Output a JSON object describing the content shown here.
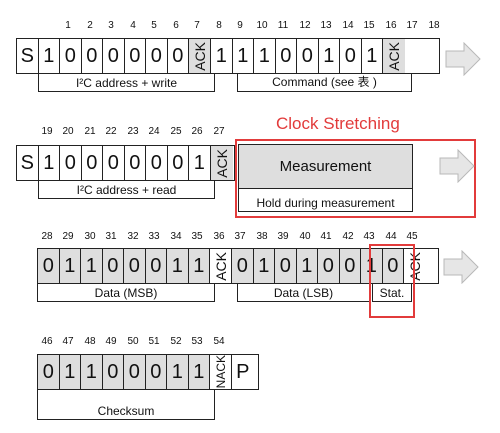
{
  "colors": {
    "highlight": "#e23b3b",
    "shade": "#dedede",
    "arrow": "#d8d8d8"
  },
  "row1": {
    "numbers": [
      "1",
      "2",
      "3",
      "4",
      "5",
      "6",
      "7",
      "8",
      "9",
      "10",
      "11",
      "12",
      "13",
      "14",
      "15",
      "16",
      "17",
      "18"
    ],
    "bits": [
      "S",
      "1",
      "0",
      "0",
      "0",
      "0",
      "0",
      "0",
      "ACK",
      "1",
      "1",
      "1",
      "0",
      "0",
      "1",
      "0",
      "1",
      "ACK"
    ],
    "brace_addr": "I²C address + write",
    "brace_cmd": "Command (see 表 )"
  },
  "row2": {
    "numbers": [
      "19",
      "20",
      "21",
      "22",
      "23",
      "24",
      "25",
      "26",
      "27"
    ],
    "bits": [
      "S",
      "1",
      "0",
      "0",
      "0",
      "0",
      "0",
      "0",
      "1",
      "ACK"
    ],
    "clock_stretching": "Clock Stretching",
    "measurement": "Measurement",
    "hold": "Hold during measurement",
    "brace_addr": "I²C address + read"
  },
  "row3": {
    "numbers": [
      "28",
      "29",
      "30",
      "31",
      "32",
      "33",
      "34",
      "35",
      "36",
      "37",
      "38",
      "39",
      "40",
      "41",
      "42",
      "43",
      "44",
      "45"
    ],
    "bits": [
      "0",
      "1",
      "1",
      "0",
      "0",
      "0",
      "1",
      "1",
      "ACK",
      "0",
      "1",
      "0",
      "1",
      "0",
      "0",
      "1",
      "0",
      "ACK"
    ],
    "brace_msb": "Data (MSB)",
    "brace_lsb": "Data (LSB)",
    "brace_stat": "Stat."
  },
  "row4": {
    "numbers": [
      "46",
      "47",
      "48",
      "49",
      "50",
      "51",
      "52",
      "53",
      "54"
    ],
    "bits": [
      "0",
      "1",
      "1",
      "0",
      "0",
      "0",
      "1",
      "1",
      "NACK",
      "P"
    ],
    "brace_checksum": "Checksum"
  }
}
